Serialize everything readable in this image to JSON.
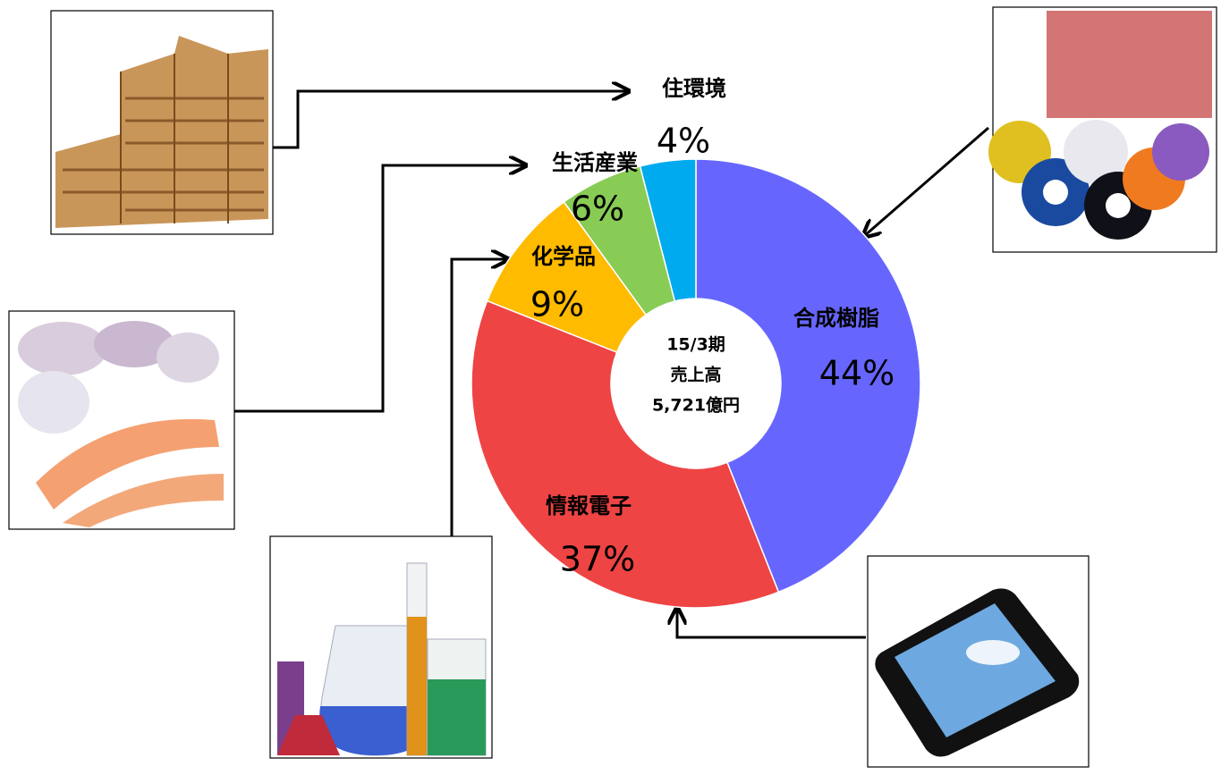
{
  "chart_data": {
    "type": "pie",
    "donut": true,
    "categories": [
      "合成樹脂",
      "情報電子",
      "化学品",
      "生活産業",
      "住環境"
    ],
    "values": [
      44,
      37,
      9,
      6,
      4
    ],
    "value_labels": [
      "44%",
      "37%",
      "9%",
      "6%",
      "4%"
    ],
    "colors": [
      "#6666ff",
      "#ee4444",
      "#ffbb00",
      "#88cc55",
      "#00aaee"
    ],
    "annotations": [
      "15/3期",
      "売上高",
      "5,721億円"
    ]
  }
}
